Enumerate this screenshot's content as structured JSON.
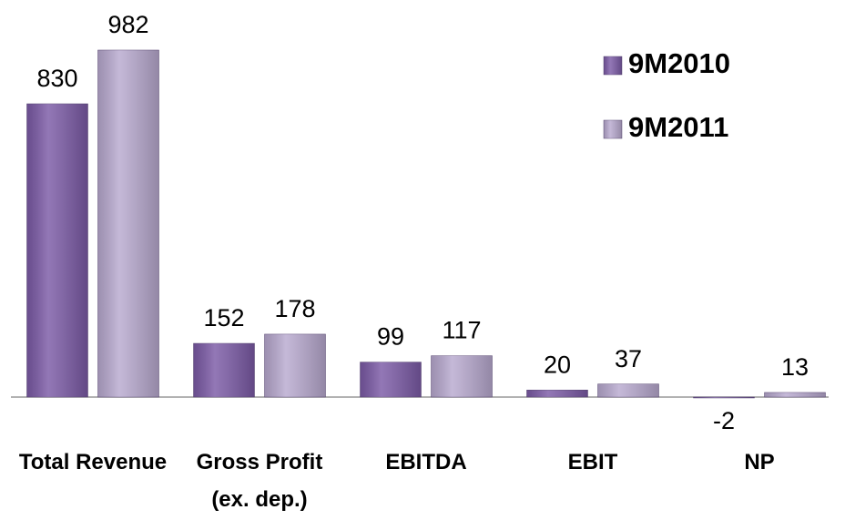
{
  "chart_data": {
    "type": "bar",
    "categories": [
      "Total Revenue",
      "Gross Profit (ex. dep.)",
      "EBITDA",
      "EBIT",
      "NP"
    ],
    "series": [
      {
        "name": "9M2010",
        "color": "#7b5aa6",
        "values": [
          830,
          152,
          99,
          20,
          -2
        ]
      },
      {
        "name": "9M2011",
        "color": "#b8a9cf",
        "values": [
          982,
          178,
          117,
          37,
          13
        ]
      }
    ],
    "legend": "top-right"
  }
}
